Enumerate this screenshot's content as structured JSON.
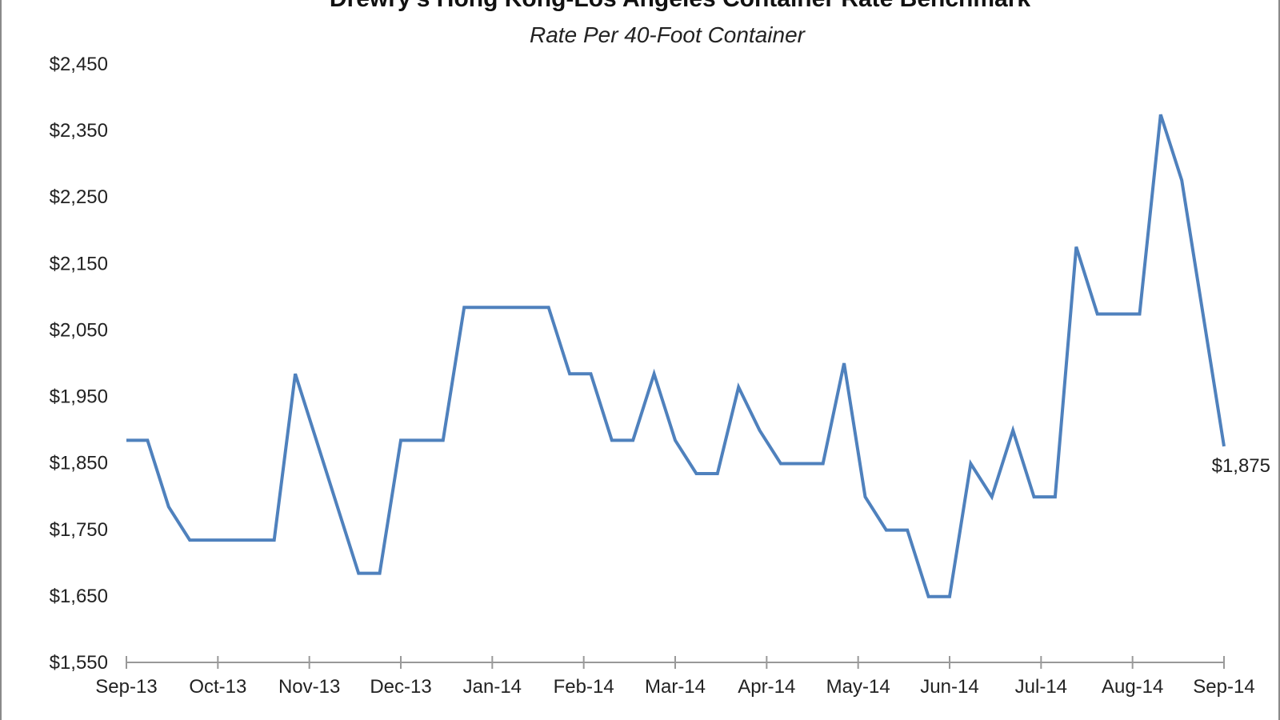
{
  "chart_data": {
    "type": "line",
    "title": "Drewry's Hong Kong-Los Angeles Container Rate Benchmark",
    "subtitle": "Rate Per 40-Foot Container",
    "xlabel": "",
    "ylabel": "",
    "ylim": [
      1550,
      2450
    ],
    "y_ticks": [
      "$1,550",
      "$1,650",
      "$1,750",
      "$1,850",
      "$1,950",
      "$2,050",
      "$2,150",
      "$2,250",
      "$2,350",
      "$2,450"
    ],
    "x_ticks": [
      "Sep-13",
      "Oct-13",
      "Nov-13",
      "Dec-13",
      "Jan-14",
      "Feb-14",
      "Mar-14",
      "Apr-14",
      "May-14",
      "Jun-14",
      "Jul-14",
      "Aug-14",
      "Sep-14"
    ],
    "grid": false,
    "series_color": "#4f81bd",
    "end_label": "$1,875",
    "series": [
      {
        "values": [
          1884,
          1884,
          1784,
          1734,
          1734,
          1734,
          1734,
          1734,
          1984,
          1884,
          1784,
          1684,
          1684,
          1884,
          1884,
          1884,
          2084,
          2084,
          2084,
          2084,
          2084,
          1984,
          1984,
          1884,
          1884,
          1984,
          1884,
          1834,
          1834,
          1964,
          1899,
          1849,
          1849,
          1849,
          2000,
          1799,
          1749,
          1749,
          1649,
          1649,
          1849,
          1799,
          1899,
          1799,
          1799,
          2175,
          2074,
          2074,
          2074,
          2374,
          2275,
          2075,
          1875
        ]
      }
    ]
  }
}
